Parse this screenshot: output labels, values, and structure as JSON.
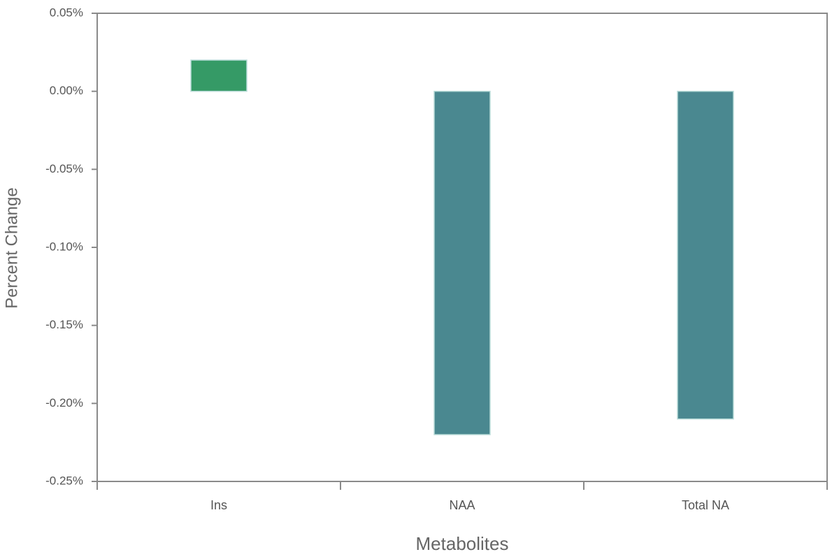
{
  "chart_data": {
    "type": "bar",
    "x_label": "Metabolites",
    "y_label": "Percent Change",
    "categories": [
      "Ins",
      "NAA",
      "Total NA"
    ],
    "values": [
      0.02,
      -0.22,
      -0.21
    ],
    "colors": [
      "#359a66",
      "#4a8890",
      "#4a8890"
    ],
    "ylim": [
      -0.25,
      0.05
    ],
    "yticks": [
      {
        "value": -0.25,
        "label": "-0.25%"
      },
      {
        "value": -0.2,
        "label": "-0.20%"
      },
      {
        "value": -0.15,
        "label": "-0.15%"
      },
      {
        "value": -0.1,
        "label": "-0.10%"
      },
      {
        "value": -0.05,
        "label": "-0.05%"
      },
      {
        "value": 0,
        "label": "0.00%"
      },
      {
        "value": 0.05,
        "label": "0.05%"
      }
    ],
    "grid": false
  }
}
